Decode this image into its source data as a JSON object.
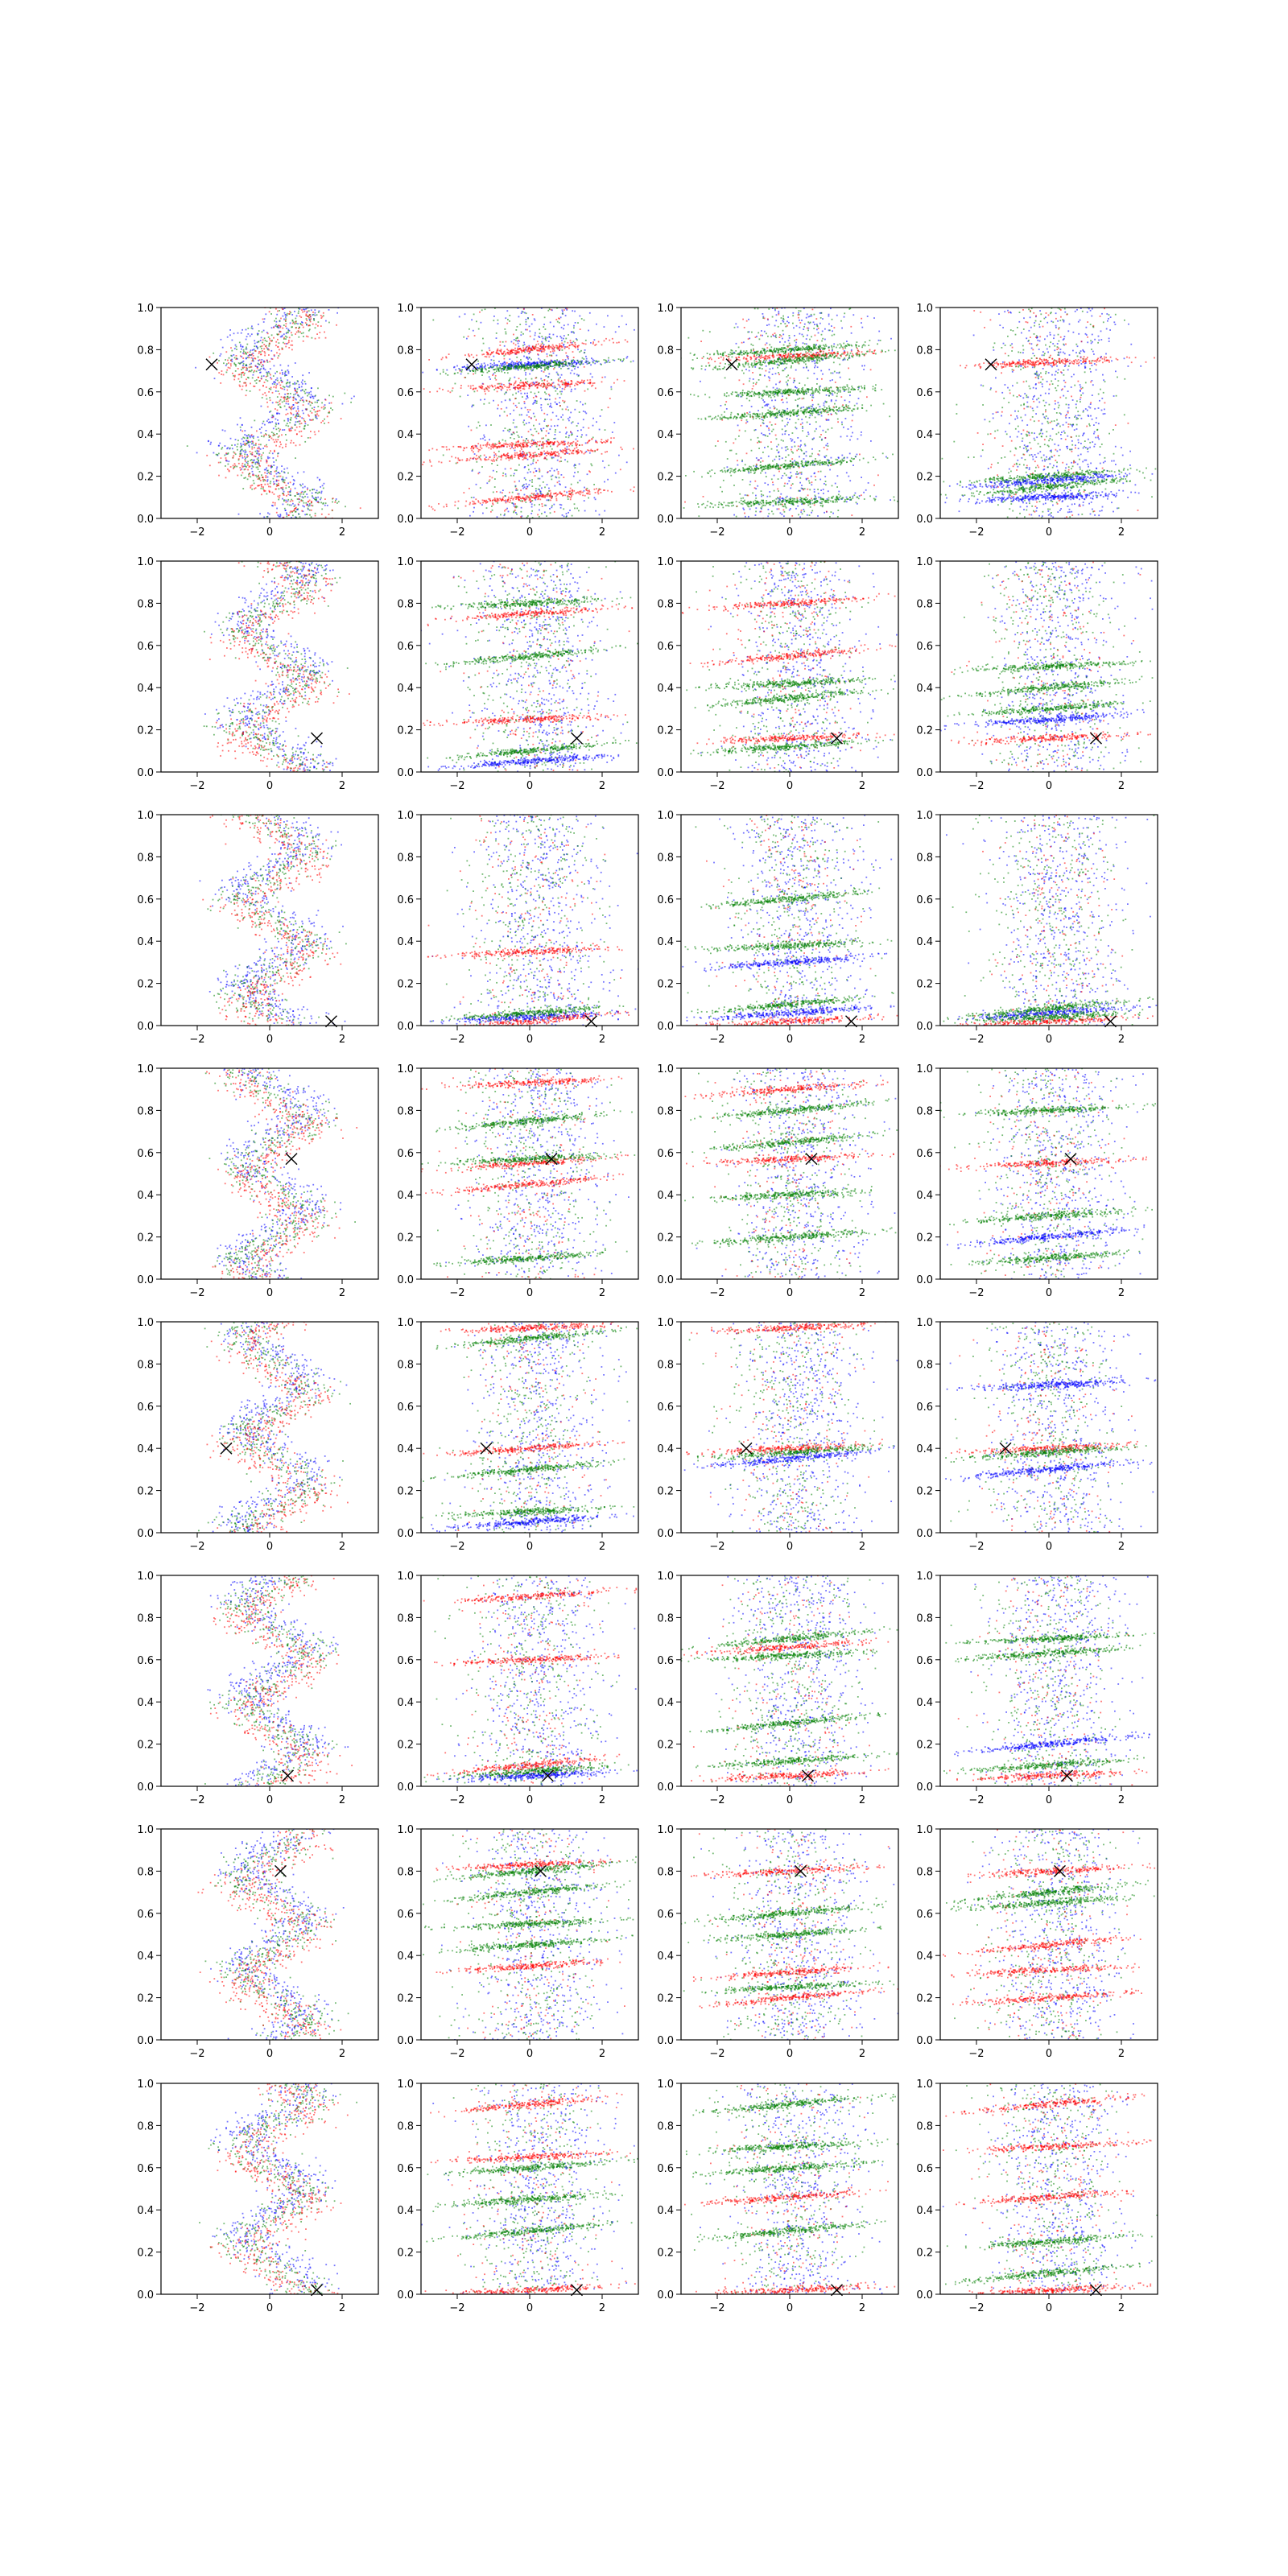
{
  "figure": {
    "rows": 8,
    "cols": 4,
    "colors": {
      "blue": "#0000ff",
      "green": "#008000",
      "red": "#ff0000",
      "marker": "#000000"
    }
  },
  "chart_data": {
    "type": "scatter",
    "xlim": [
      -3,
      3
    ],
    "ylim": [
      0,
      1
    ],
    "xticks": [
      -2,
      0,
      2
    ],
    "yticks": [
      0.0,
      0.2,
      0.4,
      0.6,
      0.8,
      1.0
    ],
    "xtick_labels": [
      "−2",
      "0",
      "2"
    ],
    "ytick_labels": [
      "0.0",
      "0.2",
      "0.4",
      "0.6",
      "0.8",
      "1.0"
    ],
    "grid": false,
    "legend": "none",
    "series_colors": [
      "blue",
      "green",
      "red"
    ],
    "marker": "x",
    "panels": [
      {
        "row": 0,
        "col": 0,
        "mode": "sine",
        "x_marker": [
          -1.6,
          0.73
        ]
      },
      {
        "row": 0,
        "col": 1,
        "mode": "bands",
        "bands": [
          [
            0.73,
            "blue"
          ],
          [
            0.72,
            "green"
          ],
          [
            0.8,
            "red"
          ],
          [
            0.63,
            "red"
          ],
          [
            0.3,
            "red"
          ],
          [
            0.1,
            "red"
          ],
          [
            0.35,
            "red"
          ]
        ],
        "x_marker": [
          -1.6,
          0.73
        ]
      },
      {
        "row": 0,
        "col": 2,
        "mode": "bands",
        "bands": [
          [
            0.77,
            "red"
          ],
          [
            0.8,
            "green"
          ],
          [
            0.75,
            "green"
          ],
          [
            0.6,
            "green"
          ],
          [
            0.5,
            "green"
          ],
          [
            0.25,
            "green"
          ],
          [
            0.08,
            "green"
          ]
        ],
        "x_marker": [
          -1.6,
          0.73
        ]
      },
      {
        "row": 0,
        "col": 3,
        "mode": "bands",
        "bands": [
          [
            0.74,
            "red"
          ],
          [
            0.2,
            "green"
          ],
          [
            0.15,
            "green"
          ],
          [
            0.1,
            "blue"
          ],
          [
            0.18,
            "blue"
          ]
        ],
        "x_marker": [
          -1.6,
          0.73
        ]
      },
      {
        "row": 1,
        "col": 0,
        "mode": "sine",
        "x_marker": [
          1.3,
          0.16
        ]
      },
      {
        "row": 1,
        "col": 1,
        "mode": "bands",
        "bands": [
          [
            0.8,
            "green"
          ],
          [
            0.75,
            "red"
          ],
          [
            0.55,
            "green"
          ],
          [
            0.25,
            "red"
          ],
          [
            0.05,
            "blue"
          ],
          [
            0.1,
            "green"
          ]
        ],
        "x_marker": [
          1.3,
          0.16
        ]
      },
      {
        "row": 1,
        "col": 2,
        "mode": "bands",
        "bands": [
          [
            0.16,
            "red"
          ],
          [
            0.12,
            "green"
          ],
          [
            0.35,
            "green"
          ],
          [
            0.42,
            "green"
          ],
          [
            0.8,
            "red"
          ],
          [
            0.55,
            "red"
          ]
        ],
        "x_marker": [
          1.3,
          0.16
        ]
      },
      {
        "row": 1,
        "col": 3,
        "mode": "bands",
        "bands": [
          [
            0.16,
            "red"
          ],
          [
            0.3,
            "green"
          ],
          [
            0.4,
            "green"
          ],
          [
            0.5,
            "green"
          ],
          [
            0.25,
            "blue"
          ]
        ],
        "x_marker": [
          1.3,
          0.16
        ]
      },
      {
        "row": 2,
        "col": 0,
        "mode": "sine",
        "x_marker": [
          1.7,
          0.02
        ]
      },
      {
        "row": 2,
        "col": 1,
        "mode": "bands",
        "bands": [
          [
            0.04,
            "blue"
          ],
          [
            0.06,
            "green"
          ],
          [
            0.02,
            "red"
          ],
          [
            0.35,
            "red"
          ]
        ],
        "x_marker": [
          1.7,
          0.02
        ]
      },
      {
        "row": 2,
        "col": 2,
        "mode": "bands",
        "bands": [
          [
            0.02,
            "red"
          ],
          [
            0.06,
            "blue"
          ],
          [
            0.1,
            "green"
          ],
          [
            0.38,
            "green"
          ],
          [
            0.3,
            "blue"
          ],
          [
            0.6,
            "green"
          ]
        ],
        "x_marker": [
          1.7,
          0.02
        ]
      },
      {
        "row": 2,
        "col": 3,
        "mode": "bands",
        "bands": [
          [
            0.02,
            "red"
          ],
          [
            0.06,
            "blue"
          ],
          [
            0.08,
            "green"
          ],
          [
            0.04,
            "green"
          ]
        ],
        "x_marker": [
          1.7,
          0.02
        ]
      },
      {
        "row": 3,
        "col": 0,
        "mode": "sine",
        "x_marker": [
          0.6,
          0.57
        ]
      },
      {
        "row": 3,
        "col": 1,
        "mode": "bands",
        "bands": [
          [
            0.93,
            "red"
          ],
          [
            0.55,
            "red"
          ],
          [
            0.45,
            "red"
          ],
          [
            0.57,
            "green"
          ],
          [
            0.1,
            "green"
          ],
          [
            0.75,
            "green"
          ]
        ],
        "x_marker": [
          0.6,
          0.57
        ]
      },
      {
        "row": 3,
        "col": 2,
        "mode": "bands",
        "bands": [
          [
            0.57,
            "red"
          ],
          [
            0.9,
            "red"
          ],
          [
            0.8,
            "green"
          ],
          [
            0.4,
            "green"
          ],
          [
            0.2,
            "green"
          ],
          [
            0.65,
            "green"
          ]
        ],
        "x_marker": [
          0.6,
          0.57
        ]
      },
      {
        "row": 3,
        "col": 3,
        "mode": "bands",
        "bands": [
          [
            0.55,
            "red"
          ],
          [
            0.3,
            "green"
          ],
          [
            0.2,
            "blue"
          ],
          [
            0.8,
            "green"
          ],
          [
            0.1,
            "green"
          ]
        ],
        "x_marker": [
          0.6,
          0.57
        ]
      },
      {
        "row": 4,
        "col": 0,
        "mode": "sine",
        "x_marker": [
          -1.2,
          0.4
        ]
      },
      {
        "row": 4,
        "col": 1,
        "mode": "bands",
        "bands": [
          [
            0.97,
            "red"
          ],
          [
            0.4,
            "red"
          ],
          [
            0.92,
            "green"
          ],
          [
            0.1,
            "green"
          ],
          [
            0.05,
            "blue"
          ],
          [
            0.3,
            "green"
          ]
        ],
        "x_marker": [
          -1.2,
          0.4
        ]
      },
      {
        "row": 4,
        "col": 2,
        "mode": "bands",
        "bands": [
          [
            0.4,
            "red"
          ],
          [
            0.38,
            "green"
          ],
          [
            0.35,
            "blue"
          ],
          [
            0.97,
            "red"
          ]
        ],
        "x_marker": [
          -1.2,
          0.4
        ]
      },
      {
        "row": 4,
        "col": 3,
        "mode": "bands",
        "bands": [
          [
            0.4,
            "red"
          ],
          [
            0.38,
            "green"
          ],
          [
            0.3,
            "blue"
          ],
          [
            0.7,
            "blue"
          ]
        ],
        "x_marker": [
          -1.2,
          0.4
        ]
      },
      {
        "row": 5,
        "col": 0,
        "mode": "sine",
        "x_marker": [
          0.5,
          0.05
        ]
      },
      {
        "row": 5,
        "col": 1,
        "mode": "bands",
        "bands": [
          [
            0.05,
            "blue"
          ],
          [
            0.07,
            "green"
          ],
          [
            0.1,
            "red"
          ],
          [
            0.6,
            "red"
          ],
          [
            0.9,
            "red"
          ]
        ],
        "x_marker": [
          0.5,
          0.05
        ]
      },
      {
        "row": 5,
        "col": 2,
        "mode": "bands",
        "bands": [
          [
            0.05,
            "red"
          ],
          [
            0.66,
            "red"
          ],
          [
            0.7,
            "green"
          ],
          [
            0.62,
            "green"
          ],
          [
            0.12,
            "green"
          ],
          [
            0.3,
            "green"
          ]
        ],
        "x_marker": [
          0.5,
          0.05
        ]
      },
      {
        "row": 5,
        "col": 3,
        "mode": "bands",
        "bands": [
          [
            0.05,
            "red"
          ],
          [
            0.1,
            "green"
          ],
          [
            0.2,
            "blue"
          ],
          [
            0.7,
            "green"
          ],
          [
            0.63,
            "green"
          ]
        ],
        "x_marker": [
          0.5,
          0.05
        ]
      },
      {
        "row": 6,
        "col": 0,
        "mode": "sine",
        "x_marker": [
          0.3,
          0.8
        ]
      },
      {
        "row": 6,
        "col": 1,
        "mode": "bands",
        "bands": [
          [
            0.83,
            "red"
          ],
          [
            0.35,
            "red"
          ],
          [
            0.8,
            "green"
          ],
          [
            0.55,
            "green"
          ],
          [
            0.45,
            "green"
          ],
          [
            0.7,
            "green"
          ]
        ],
        "x_marker": [
          0.3,
          0.8
        ]
      },
      {
        "row": 6,
        "col": 2,
        "mode": "bands",
        "bands": [
          [
            0.8,
            "red"
          ],
          [
            0.32,
            "red"
          ],
          [
            0.2,
            "red"
          ],
          [
            0.25,
            "green"
          ],
          [
            0.5,
            "green"
          ],
          [
            0.6,
            "green"
          ]
        ],
        "x_marker": [
          0.3,
          0.8
        ]
      },
      {
        "row": 6,
        "col": 3,
        "mode": "bands",
        "bands": [
          [
            0.8,
            "red"
          ],
          [
            0.65,
            "green"
          ],
          [
            0.7,
            "green"
          ],
          [
            0.33,
            "red"
          ],
          [
            0.2,
            "red"
          ],
          [
            0.45,
            "red"
          ]
        ],
        "x_marker": [
          0.3,
          0.8
        ]
      },
      {
        "row": 7,
        "col": 0,
        "mode": "sine",
        "x_marker": [
          1.3,
          0.02
        ]
      },
      {
        "row": 7,
        "col": 1,
        "mode": "bands",
        "bands": [
          [
            0.02,
            "red"
          ],
          [
            0.45,
            "green"
          ],
          [
            0.9,
            "red"
          ],
          [
            0.65,
            "red"
          ],
          [
            0.6,
            "green"
          ],
          [
            0.3,
            "green"
          ]
        ],
        "x_marker": [
          1.3,
          0.02
        ]
      },
      {
        "row": 7,
        "col": 2,
        "mode": "bands",
        "bands": [
          [
            0.02,
            "red"
          ],
          [
            0.46,
            "red"
          ],
          [
            0.9,
            "green"
          ],
          [
            0.7,
            "green"
          ],
          [
            0.6,
            "green"
          ],
          [
            0.3,
            "green"
          ]
        ],
        "x_marker": [
          1.3,
          0.02
        ]
      },
      {
        "row": 7,
        "col": 3,
        "mode": "bands",
        "bands": [
          [
            0.02,
            "red"
          ],
          [
            0.46,
            "red"
          ],
          [
            0.9,
            "red"
          ],
          [
            0.7,
            "red"
          ],
          [
            0.25,
            "green"
          ],
          [
            0.1,
            "green"
          ]
        ],
        "x_marker": [
          1.3,
          0.02
        ]
      }
    ]
  }
}
